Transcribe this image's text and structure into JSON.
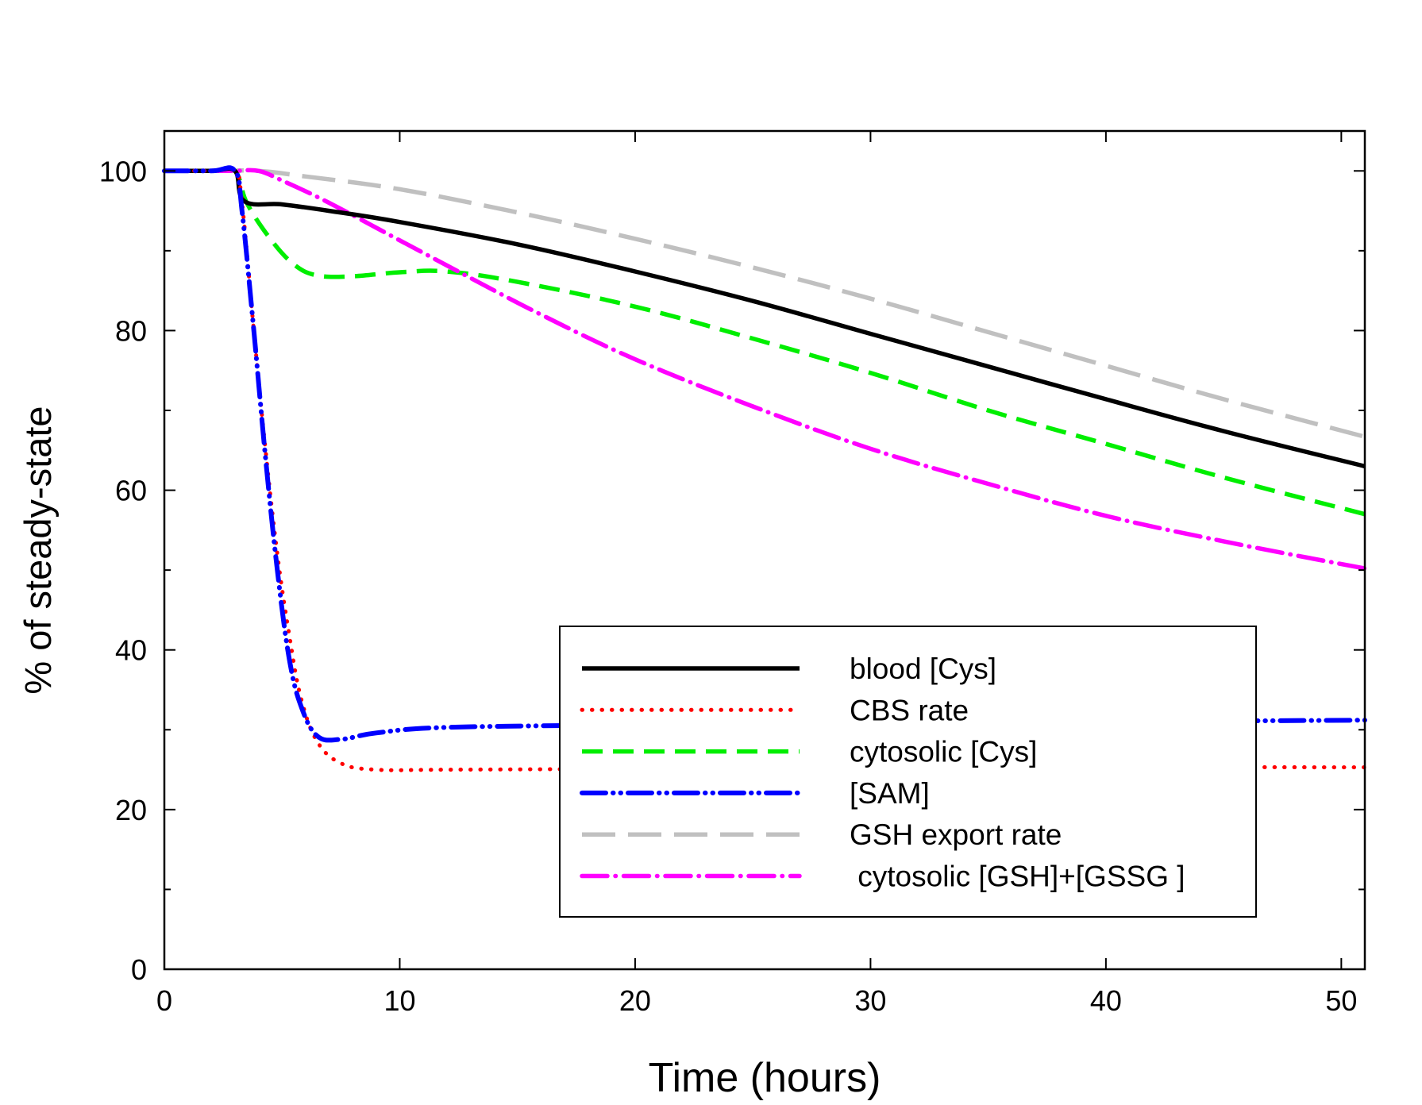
{
  "chart_data": {
    "type": "line",
    "title": "",
    "xlabel": "Time (hours)",
    "ylabel": "% of steady-state",
    "xlim": [
      0,
      51
    ],
    "ylim": [
      0,
      105
    ],
    "xticks": [
      0,
      10,
      20,
      30,
      40,
      50
    ],
    "xtick_labels": [
      "0",
      "10",
      "20",
      "30",
      "40",
      "50"
    ],
    "yticks": [
      0,
      20,
      40,
      60,
      80,
      100
    ],
    "ytick_labels": [
      "0",
      "20",
      "40",
      "60",
      "80",
      "100"
    ],
    "yminor_ticks": [
      10,
      30,
      50,
      70,
      90
    ],
    "grid": false,
    "legend_position": "lower-right",
    "series": [
      {
        "name": "blood [Cys]",
        "color": "#000000",
        "style": "solid",
        "x": [
          0,
          2,
          3,
          3.4,
          5,
          7,
          10,
          15,
          20,
          25,
          30,
          35,
          40,
          45,
          51
        ],
        "y": [
          100,
          100,
          100,
          96.2,
          95.8,
          95.0,
          93.6,
          90.8,
          87.4,
          83.7,
          79.6,
          75.5,
          71.4,
          67.4,
          63.0
        ]
      },
      {
        "name": "CBS rate",
        "color": "#ff0000",
        "style": "dotted",
        "x": [
          0,
          2,
          3,
          3.3,
          3.8,
          4.3,
          4.8,
          5.3,
          5.8,
          6.5,
          7.5,
          9,
          12,
          20,
          30,
          40,
          51
        ],
        "y": [
          100,
          100,
          100,
          96,
          80,
          65,
          52,
          42,
          34,
          28.5,
          25.8,
          25.0,
          25.0,
          25.1,
          25.2,
          25.3,
          25.3
        ]
      },
      {
        "name": "cytosolic [Cys]",
        "color": "#00ee00",
        "style": "dashed",
        "x": [
          0,
          2,
          3,
          3.5,
          4.5,
          5.5,
          6.5,
          8,
          10,
          12,
          15,
          20,
          25,
          30,
          35,
          40,
          45,
          51
        ],
        "y": [
          100,
          100,
          100,
          96,
          91.5,
          88.3,
          86.9,
          86.8,
          87.3,
          87.4,
          86.1,
          83.0,
          79.0,
          74.7,
          70.0,
          65.8,
          61.6,
          57.0
        ]
      },
      {
        "name": "[SAM]",
        "color": "#0000ff",
        "style": "dash-dot-dot",
        "x": [
          0,
          2,
          3,
          3.3,
          3.8,
          4.3,
          4.8,
          5.3,
          5.8,
          6.5,
          7.5,
          9,
          12,
          20,
          30,
          40,
          51
        ],
        "y": [
          100,
          100,
          100,
          95,
          80,
          64,
          50,
          39,
          33,
          29.2,
          28.8,
          29.6,
          30.3,
          30.6,
          30.8,
          31.0,
          31.2
        ]
      },
      {
        "name": "GSH export rate",
        "color": "#c0c0c0",
        "style": "long-dash",
        "x": [
          0,
          2,
          4,
          6,
          10,
          15,
          20,
          25,
          30,
          35,
          40,
          45,
          51
        ],
        "y": [
          100,
          100,
          100,
          99.3,
          97.7,
          94.8,
          91.5,
          87.9,
          84.0,
          79.8,
          75.6,
          71.4,
          66.7
        ]
      },
      {
        "name": " cytosolic [GSH]+[GSSG ]",
        "color": "#ff00ff",
        "style": "dash-dot",
        "x": [
          0,
          2,
          3,
          4,
          5,
          7,
          10,
          13,
          16,
          20,
          25,
          30,
          35,
          40,
          45,
          51
        ],
        "y": [
          100,
          100,
          100,
          100,
          98.8,
          96.0,
          91.3,
          86.6,
          82.0,
          76.4,
          70.5,
          65.2,
          60.8,
          56.8,
          53.6,
          50.2
        ]
      }
    ]
  }
}
